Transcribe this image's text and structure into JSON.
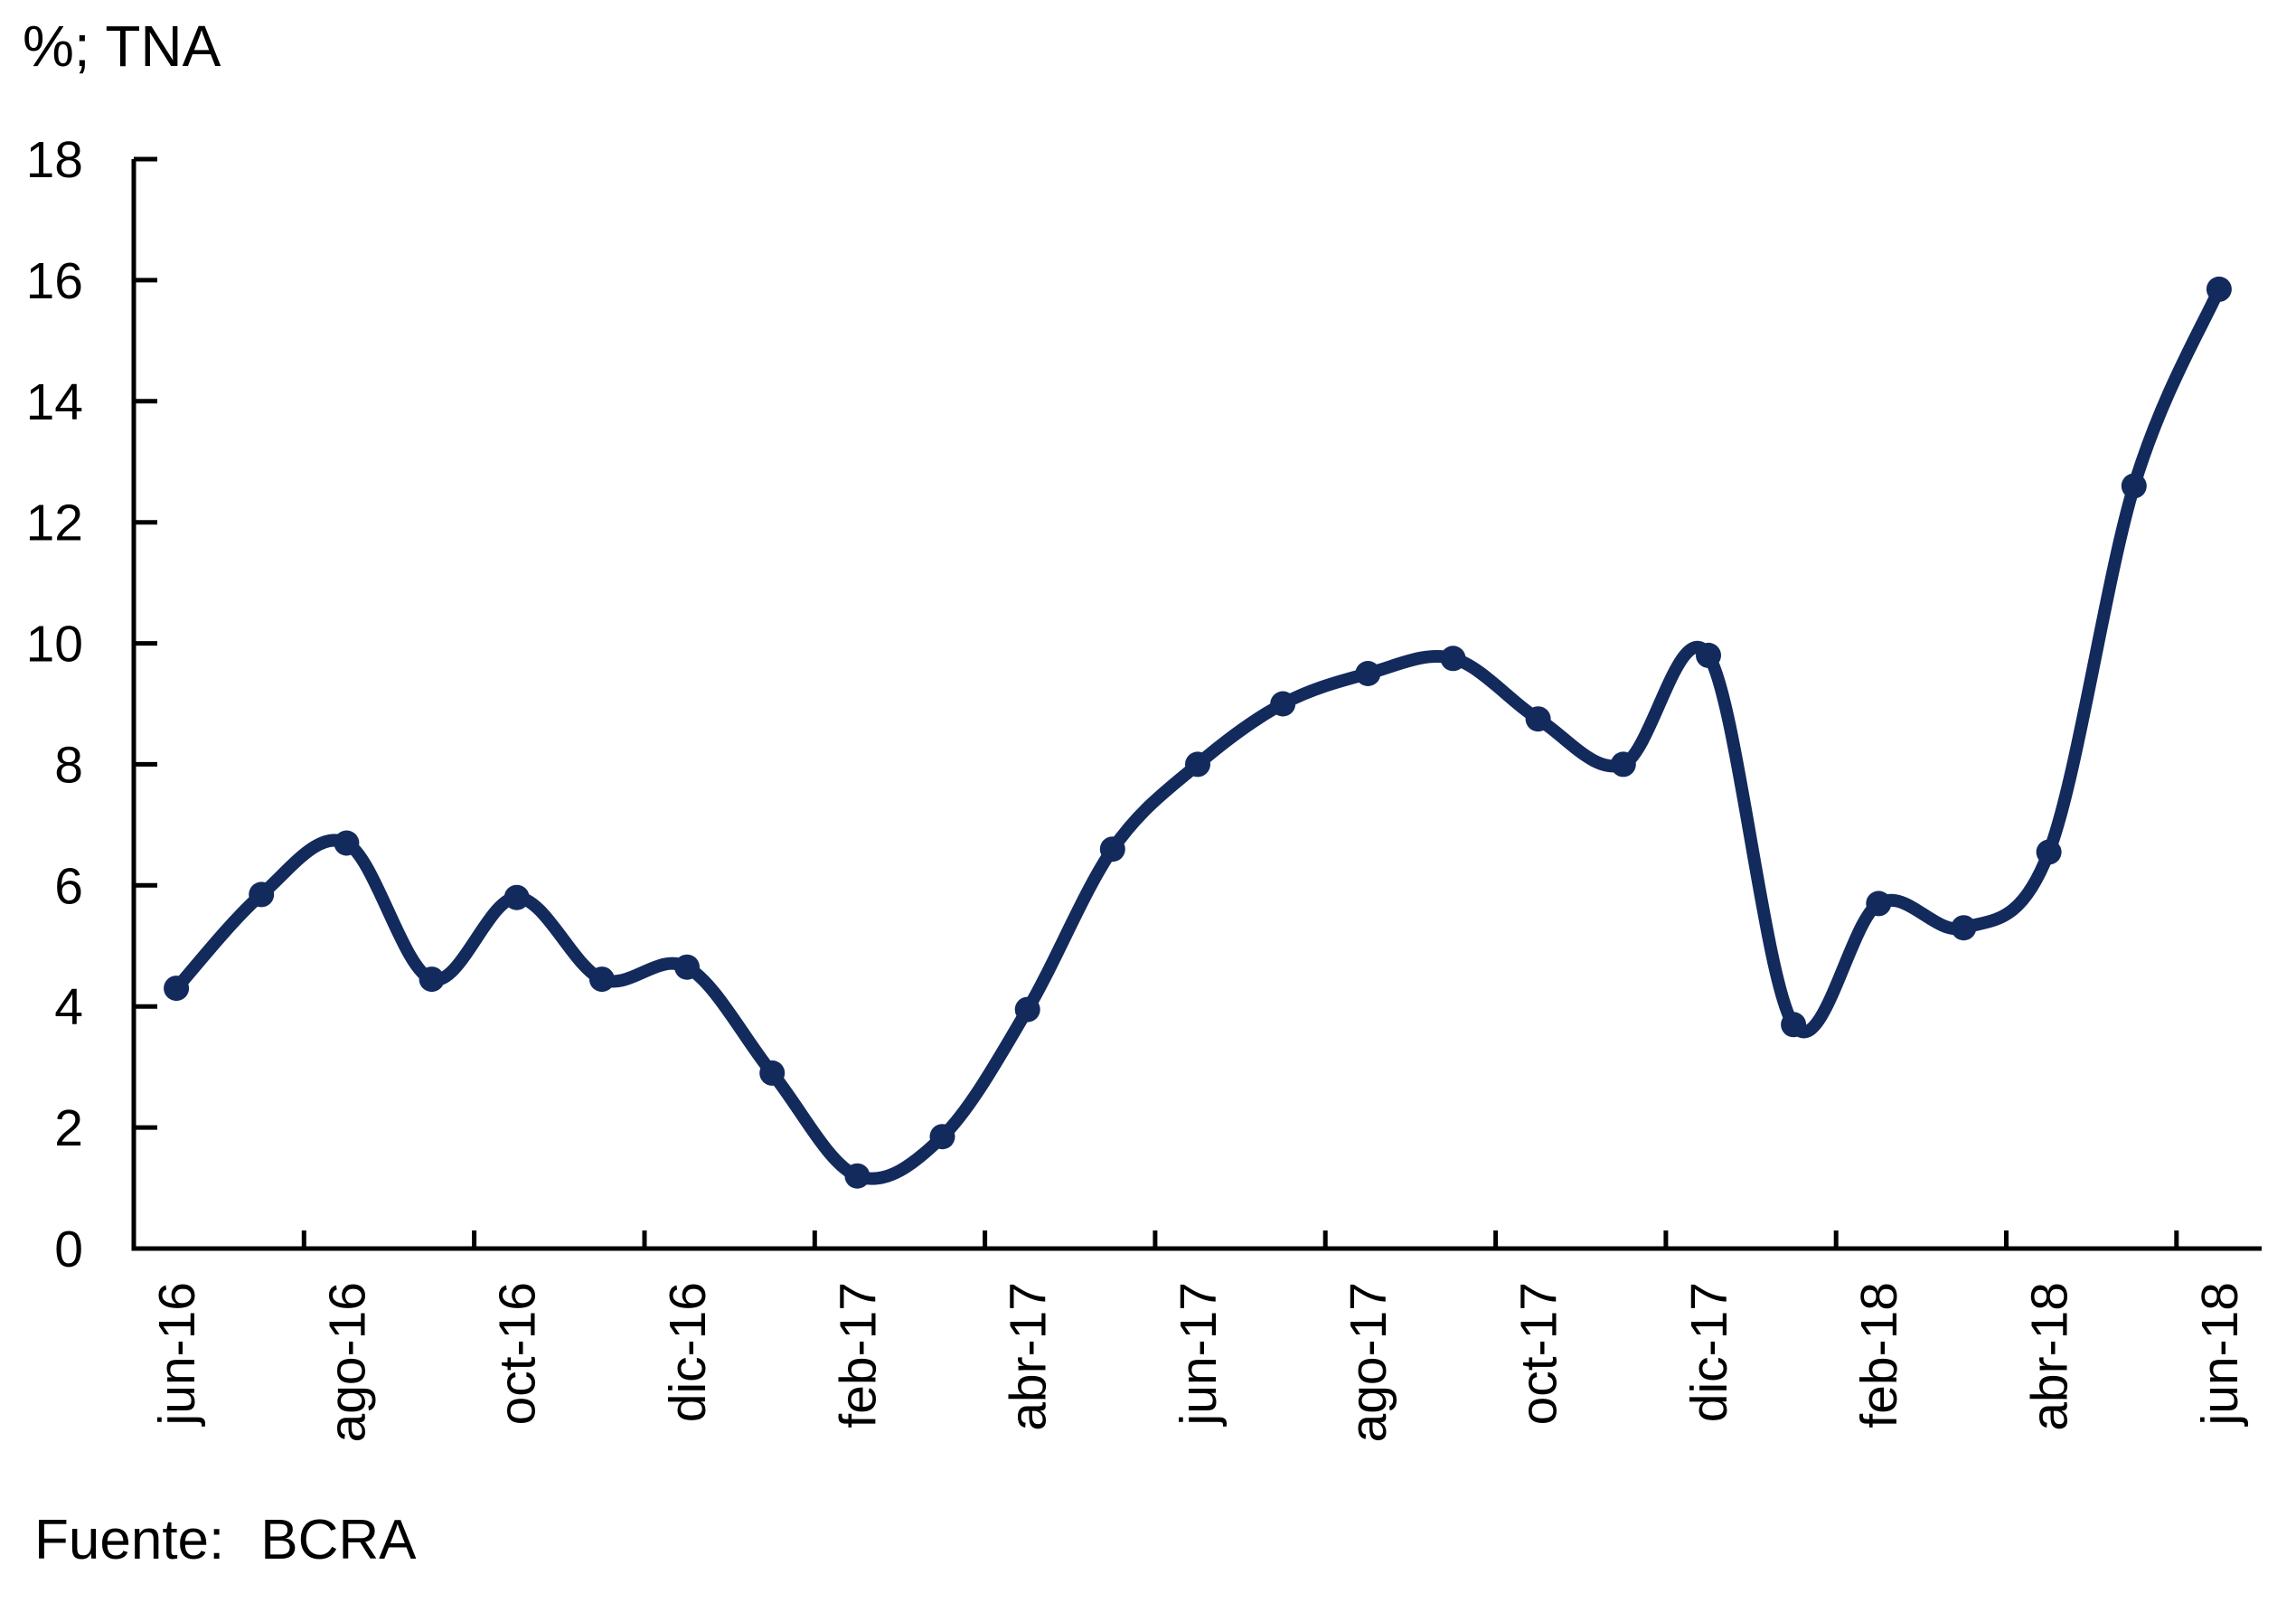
{
  "title": "%; TNA",
  "footer": {
    "label": "Fuente:",
    "source": "BCRA"
  },
  "chart_data": {
    "type": "line",
    "title": "%; TNA",
    "x": [
      "jun-16",
      "jul-16",
      "ago-16",
      "sep-16",
      "oct-16",
      "nov-16",
      "dic-16",
      "ene-17",
      "feb-17",
      "mar-17",
      "abr-17",
      "may-17",
      "jun-17",
      "jul-17",
      "ago-17",
      "sep-17",
      "oct-17",
      "nov-17",
      "dic-17",
      "ene-18",
      "feb-18",
      "mar-18",
      "abr-18",
      "may-18",
      "jun-18"
    ],
    "series": [
      {
        "values": [
          4.3,
          5.85,
          6.7,
          4.45,
          5.8,
          4.45,
          4.65,
          2.9,
          1.2,
          1.85,
          3.95,
          6.6,
          8.0,
          9.0,
          9.5,
          9.75,
          8.75,
          8.0,
          9.8,
          3.7,
          5.7,
          5.3,
          6.55,
          12.6,
          15.85
        ]
      }
    ],
    "x_tick_labels": [
      "jun-16",
      "ago-16",
      "oct-16",
      "dic-16",
      "feb-17",
      "abr-17",
      "jun-17",
      "ago-17",
      "oct-17",
      "dic-17",
      "feb-18",
      "abr-18",
      "jun-18"
    ],
    "x_label_interval": 2,
    "ylim": [
      0,
      18
    ],
    "ytick_step": 2,
    "ytick_labels": [
      "0",
      "2",
      "4",
      "6",
      "8",
      "10",
      "12",
      "14",
      "16",
      "18"
    ],
    "grid": false,
    "legend": false,
    "smooth_line": true,
    "marker": "circle",
    "line_color": "#132a5c",
    "axis_color": "#000000",
    "source_text": "Fuente: BCRA"
  }
}
